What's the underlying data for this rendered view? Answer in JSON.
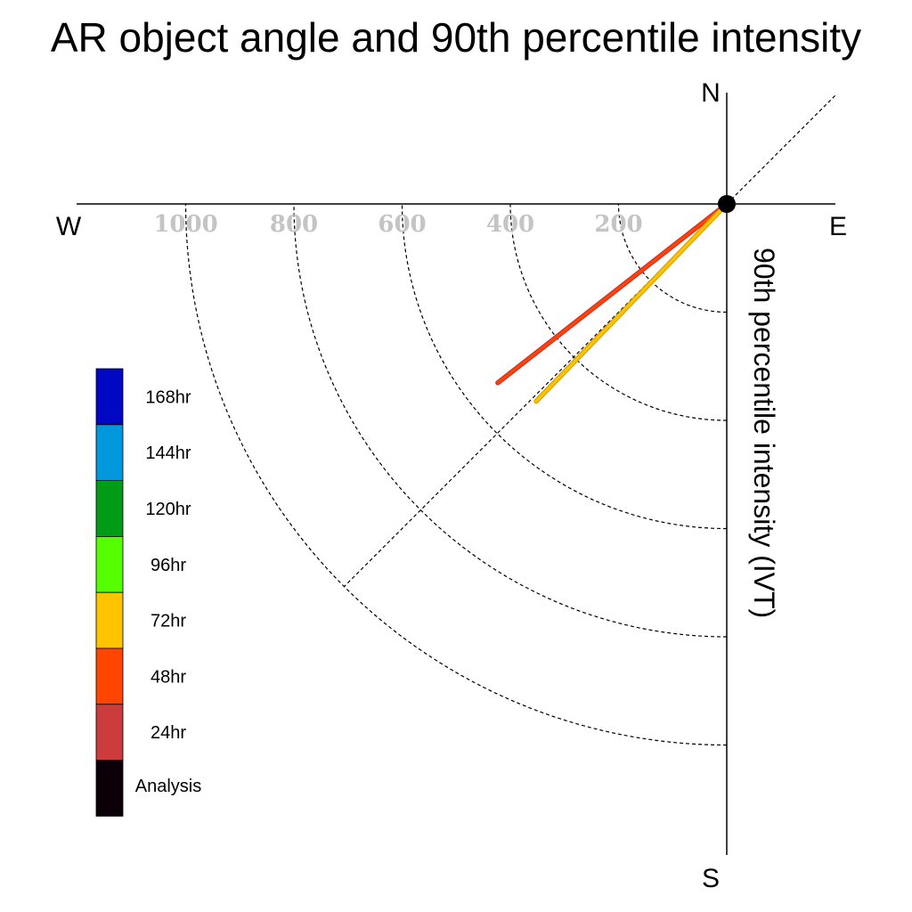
{
  "chart_data": {
    "type": "polar-vector",
    "title": "AR object angle and 90th percentile intensity",
    "ylabel": "90th percentile intensity (IVT)",
    "directions": {
      "north": "N",
      "south": "S",
      "east": "E",
      "west": "W"
    },
    "ring_values": [
      200,
      400,
      600,
      800,
      1000
    ],
    "ring_labels": [
      "1000",
      "800",
      "600",
      "400",
      "200"
    ],
    "reference_angle_deg": 225,
    "series": [
      {
        "lead": "48hr",
        "angle_deg": 232,
        "intensity": 537,
        "color": "#ff4500",
        "outline": "#d03030"
      },
      {
        "lead": "72hr",
        "angle_deg": 224,
        "intensity": 507,
        "color": "#ffc400",
        "outline": "#d9a300"
      }
    ],
    "legend": [
      {
        "label": "168hr",
        "color": "#0008c4"
      },
      {
        "label": "144hr",
        "color": "#0097dc"
      },
      {
        "label": "120hr",
        "color": "#009c18"
      },
      {
        "label": "96hr",
        "color": "#56ff00"
      },
      {
        "label": "72hr",
        "color": "#ffc400"
      },
      {
        "label": "48hr",
        "color": "#ff4500"
      },
      {
        "label": "24hr",
        "color": "#cc3c3c"
      },
      {
        "label": "Analysis",
        "color": "#0c0008"
      }
    ],
    "legend_position": "left"
  }
}
